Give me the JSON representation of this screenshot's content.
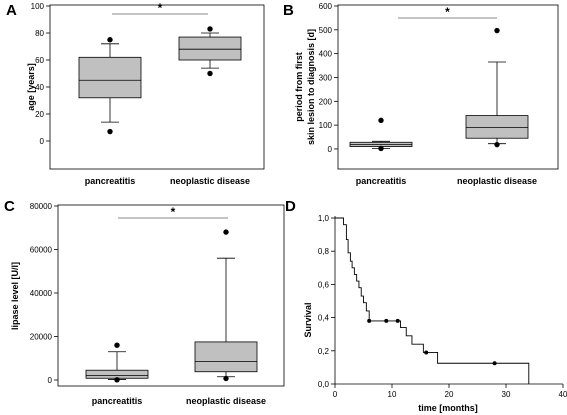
{
  "chart_data": [
    {
      "panel_label": "A",
      "type": "box",
      "ylabel": "age [years]",
      "ylim": [
        -20,
        100
      ],
      "yticks": [
        0,
        20,
        40,
        60,
        80,
        100
      ],
      "categories": [
        "pancreatitis",
        "neoplastic disease"
      ],
      "boxes": [
        {
          "whisker_low": 14,
          "q1": 32,
          "median": 45,
          "q3": 62,
          "whisker_high": 72,
          "outliers": [
            7,
            75
          ]
        },
        {
          "whisker_low": 54,
          "q1": 60,
          "median": 68,
          "q3": 77,
          "whisker_high": 80,
          "outliers": [
            50,
            83
          ]
        }
      ],
      "significance": "*"
    },
    {
      "panel_label": "B",
      "type": "box",
      "ylabel": [
        "period from first",
        "skin lesion to diagnosis [d]"
      ],
      "ylim": [
        -80,
        600
      ],
      "yticks": [
        0,
        100,
        200,
        300,
        400,
        500,
        600
      ],
      "categories": [
        "pancreatitis",
        "neoplastic disease"
      ],
      "boxes": [
        {
          "whisker_low": 2,
          "q1": 10,
          "median": 18,
          "q3": 28,
          "whisker_high": 32,
          "outliers": [
            2,
            120
          ]
        },
        {
          "whisker_low": 22,
          "q1": 45,
          "median": 90,
          "q3": 140,
          "whisker_high": 365,
          "outliers": [
            18,
            497
          ]
        }
      ],
      "significance": "*"
    },
    {
      "panel_label": "C",
      "type": "box",
      "ylabel": "lipase level [U/l]",
      "ylim": [
        0,
        80000
      ],
      "yticks": [
        0,
        20000,
        40000,
        60000,
        80000
      ],
      "categories": [
        "pancreatitis",
        "neoplastic disease"
      ],
      "boxes": [
        {
          "whisker_low": 200,
          "q1": 800,
          "median": 2000,
          "q3": 4500,
          "whisker_high": 13000,
          "outliers": [
            100,
            16000
          ]
        },
        {
          "whisker_low": 1500,
          "q1": 3800,
          "median": 8500,
          "q3": 17500,
          "whisker_high": 56000,
          "outliers": [
            700,
            68000
          ]
        }
      ],
      "significance": "*"
    },
    {
      "panel_label": "D",
      "type": "line",
      "subtype": "kaplan-meier",
      "xlabel": "time [months]",
      "ylabel": "Survival",
      "xlim": [
        0,
        40
      ],
      "ylim": [
        0,
        1.0
      ],
      "xticks": [
        0,
        10,
        20,
        30,
        40
      ],
      "yticks": [
        "0,0",
        "0,2",
        "0,4",
        "0,6",
        "0,8",
        "1,0"
      ],
      "ytick_values": [
        0,
        0.2,
        0.4,
        0.6,
        0.8,
        1.0
      ],
      "steps": [
        [
          0,
          1.0
        ],
        [
          1.5,
          0.96
        ],
        [
          2.0,
          0.87
        ],
        [
          2.3,
          0.79
        ],
        [
          2.7,
          0.74
        ],
        [
          3.0,
          0.7
        ],
        [
          3.4,
          0.66
        ],
        [
          3.8,
          0.62
        ],
        [
          4.2,
          0.58
        ],
        [
          4.6,
          0.53
        ],
        [
          5.0,
          0.49
        ],
        [
          5.5,
          0.44
        ],
        [
          6.0,
          0.38
        ],
        [
          11.5,
          0.34
        ],
        [
          12.5,
          0.29
        ],
        [
          13.5,
          0.24
        ],
        [
          15.5,
          0.19
        ],
        [
          18.0,
          0.125
        ],
        [
          34.0,
          0.0
        ]
      ],
      "censored": [
        [
          6.0,
          0.38
        ],
        [
          9.0,
          0.38
        ],
        [
          11.0,
          0.38
        ],
        [
          16.0,
          0.19
        ],
        [
          28.0,
          0.125
        ]
      ]
    }
  ]
}
